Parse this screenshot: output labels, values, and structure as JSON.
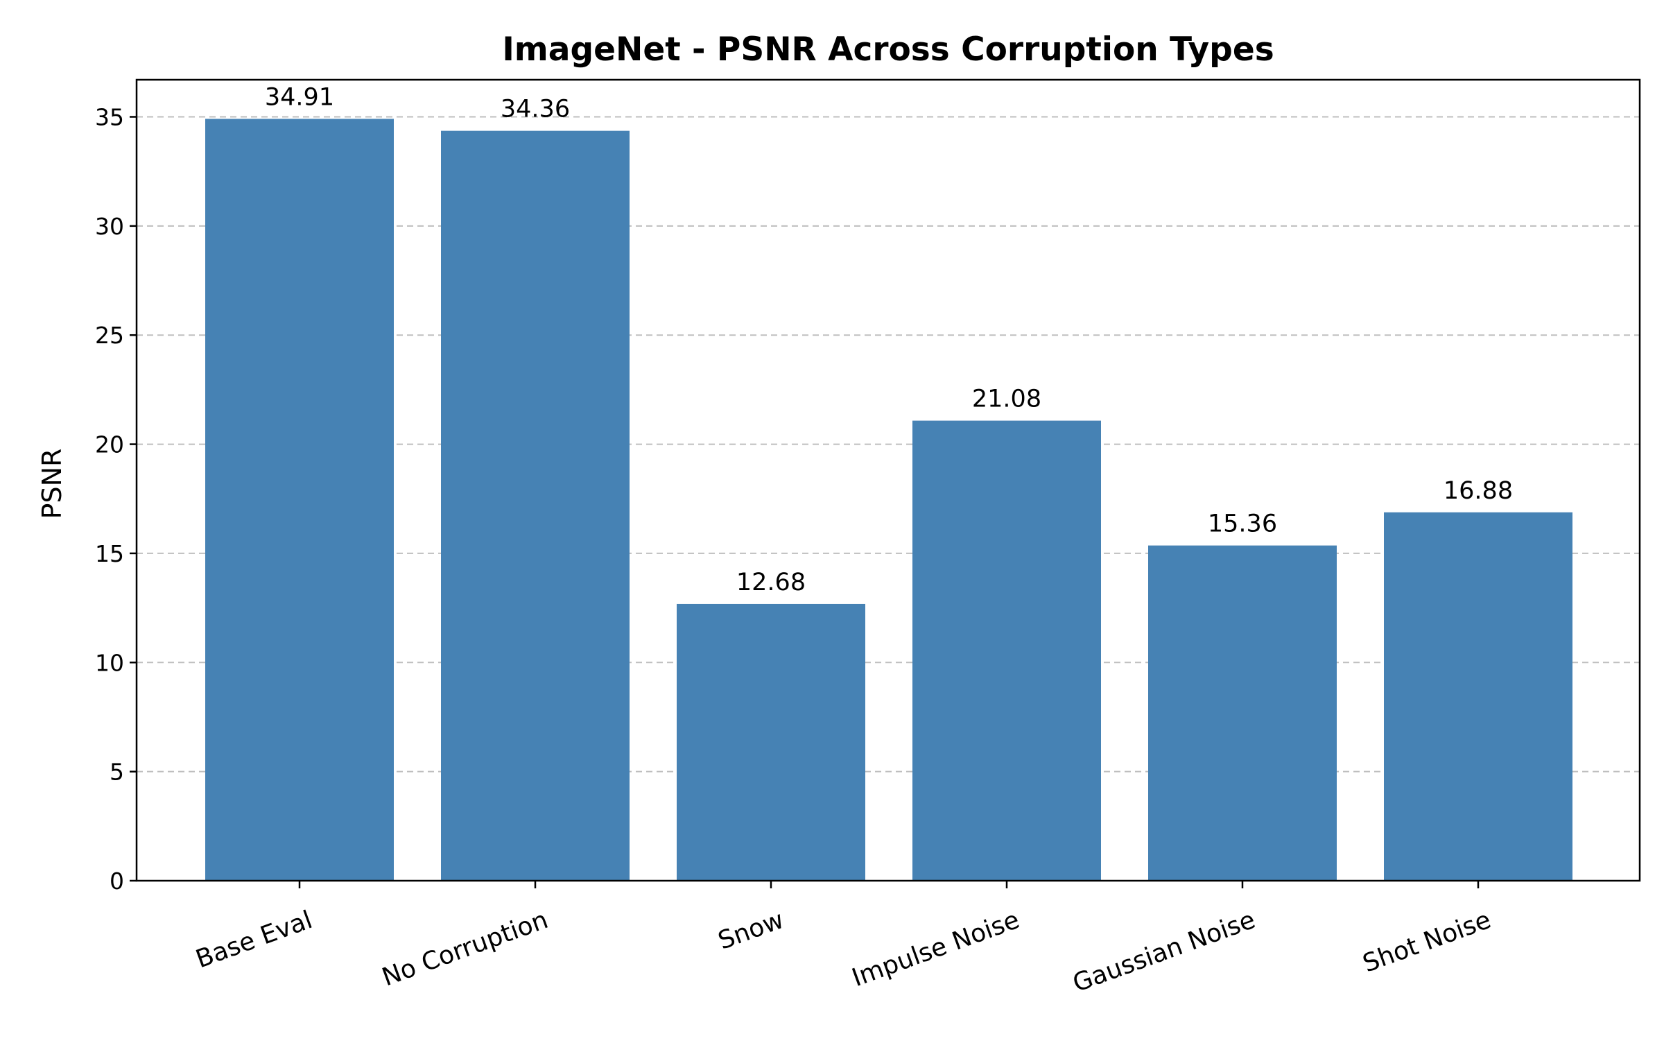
{
  "chart_data": {
    "type": "bar",
    "title": "ImageNet - PSNR Across Corruption Types",
    "xlabel": "",
    "ylabel": "PSNR",
    "categories": [
      "Base Eval",
      "No Corruption",
      "Snow",
      "Impulse Noise",
      "Gaussian Noise",
      "Shot Noise"
    ],
    "values": [
      34.91,
      34.36,
      12.68,
      21.08,
      15.36,
      16.88
    ],
    "data_labels": [
      "34.91",
      "34.36",
      "12.68",
      "21.08",
      "15.36",
      "16.88"
    ],
    "ylim": [
      0,
      36.7
    ],
    "yticks": [
      0,
      5,
      10,
      15,
      20,
      25,
      30,
      35
    ],
    "grid": "y-dashed",
    "legend": "none",
    "bar_color": "#4682b4",
    "category_label_rotation_deg": -20
  }
}
